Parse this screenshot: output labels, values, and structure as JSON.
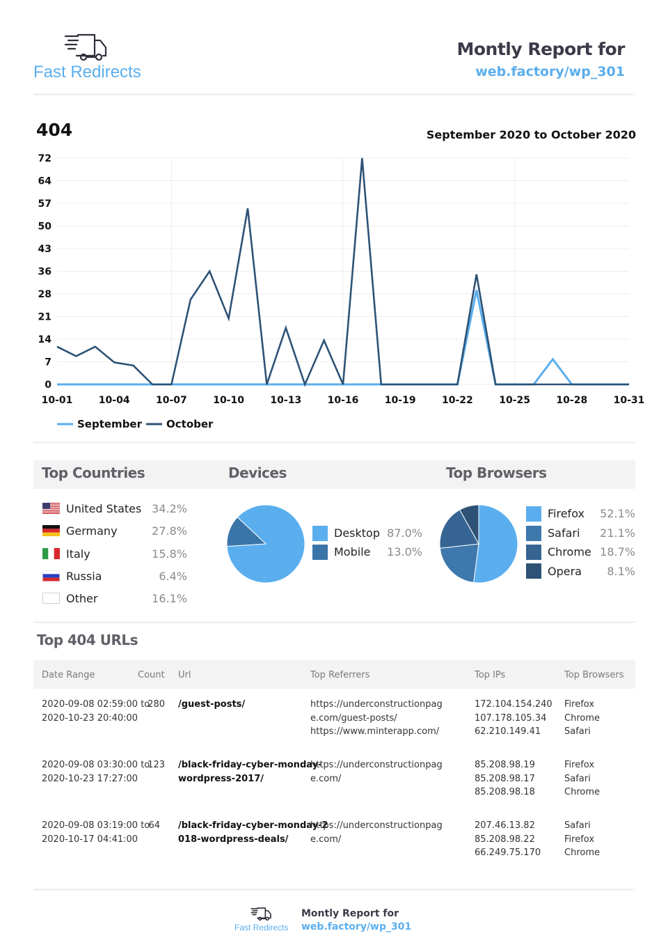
{
  "header": {
    "logo_text": "Fast Redirects",
    "title": "Montly Report for",
    "site": "web.factory/wp_301"
  },
  "chart_section": {
    "title": "404",
    "range": "September 2020 to October 2020"
  },
  "chart_data": {
    "type": "line",
    "x": [
      "10-01",
      "10-02",
      "10-03",
      "10-04",
      "10-05",
      "10-06",
      "10-07",
      "10-08",
      "10-09",
      "10-10",
      "10-11",
      "10-12",
      "10-13",
      "10-14",
      "10-15",
      "10-16",
      "10-17",
      "10-18",
      "10-19",
      "10-20",
      "10-21",
      "10-22",
      "10-23",
      "10-24",
      "10-25",
      "10-26",
      "10-27",
      "10-28",
      "10-29",
      "10-30",
      "10-31"
    ],
    "x_ticks": [
      "10-01",
      "10-04",
      "10-07",
      "10-10",
      "10-13",
      "10-16",
      "10-19",
      "10-22",
      "10-25",
      "10-28",
      "10-31"
    ],
    "y_ticks": [
      "0",
      "7",
      "14",
      "21",
      "28",
      "36",
      "43",
      "50",
      "57",
      "64",
      "72"
    ],
    "ylim": [
      0,
      72
    ],
    "series": [
      {
        "name": "September",
        "color": "#5aaeee",
        "values": [
          0,
          0,
          0,
          0,
          0,
          0,
          0,
          0,
          0,
          0,
          0,
          0,
          0,
          0,
          0,
          0,
          0,
          0,
          0,
          0,
          0,
          0,
          30,
          0,
          0,
          0,
          8,
          0,
          0,
          0,
          0
        ]
      },
      {
        "name": "October",
        "color": "#2d5275",
        "values": [
          12,
          9,
          12,
          7,
          6,
          0,
          0,
          27,
          36,
          21,
          56,
          0,
          18,
          0,
          14,
          0,
          72,
          0,
          0,
          0,
          0,
          0,
          35,
          0,
          0,
          0,
          0,
          0,
          0,
          0,
          0
        ]
      }
    ],
    "grid": true,
    "legend": "bottom-left"
  },
  "countries": {
    "title": "Top Countries",
    "items": [
      {
        "name": "United States",
        "pct": "34.2%",
        "flag": "us"
      },
      {
        "name": "Germany",
        "pct": "27.8%",
        "flag": "de"
      },
      {
        "name": "Italy",
        "pct": "15.8%",
        "flag": "it"
      },
      {
        "name": "Russia",
        "pct": "6.4%",
        "flag": "ru"
      },
      {
        "name": "Other",
        "pct": "16.1%",
        "flag": "blank"
      }
    ]
  },
  "devices": {
    "title": "Devices",
    "items": [
      {
        "name": "Desktop",
        "pct": "87.0%",
        "value": 87.0,
        "color": "#5aaeee"
      },
      {
        "name": "Mobile",
        "pct": "13.0%",
        "value": 13.0,
        "color": "#3a75a8"
      }
    ]
  },
  "browsers": {
    "title": "Top Browsers",
    "items": [
      {
        "name": "Firefox",
        "pct": "52.1%",
        "value": 52.1,
        "color": "#5aaeee"
      },
      {
        "name": "Safari",
        "pct": "21.1%",
        "value": 21.1,
        "color": "#3e78ad"
      },
      {
        "name": "Chrome",
        "pct": "18.7%",
        "value": 18.7,
        "color": "#366593"
      },
      {
        "name": "Opera",
        "pct": "8.1%",
        "value": 8.1,
        "color": "#2d5275"
      }
    ]
  },
  "urls": {
    "title": "Top 404 URLs",
    "headers": [
      "Date Range",
      "Count",
      "Url",
      "Top Referrers",
      "Top IPs",
      "Top Browsers"
    ],
    "rows": [
      {
        "date": "2020-09-08 02:59:00 to\n2020-10-23 20:40:00",
        "count": "280",
        "url": "/guest-posts/",
        "referrers": "https://underconstructionpag\ne.com/guest-posts/\nhttps://www.minterapp.com/",
        "ips": "172.104.154.240\n107.178.105.34\n62.210.149.41",
        "browsers": "Firefox\nChrome\nSafari"
      },
      {
        "date": "2020-09-08 03:30:00 to\n2020-10-23 17:27:00",
        "count": "123",
        "url": "/black-friday-cyber-monday-\nwordpress-2017/",
        "referrers": "https://underconstructionpag\ne.com/",
        "ips": "85.208.98.19\n85.208.98.17\n85.208.98.18",
        "browsers": "Firefox\nSafari\nChrome"
      },
      {
        "date": "2020-09-08 03:19:00 to\n2020-10-17 04:41:00",
        "count": "64",
        "url": "/black-friday-cyber-monday-2\n018-wordpress-deals/",
        "referrers": "https://underconstructionpag\ne.com/",
        "ips": "207.46.13.82\n85.208.98.22\n66.249.75.170",
        "browsers": "Safari\nFirefox\nChrome"
      }
    ]
  },
  "footer": {
    "logo_text": "Fast Redirects",
    "title": "Montly Report for",
    "site": "web.factory/wp_301"
  }
}
